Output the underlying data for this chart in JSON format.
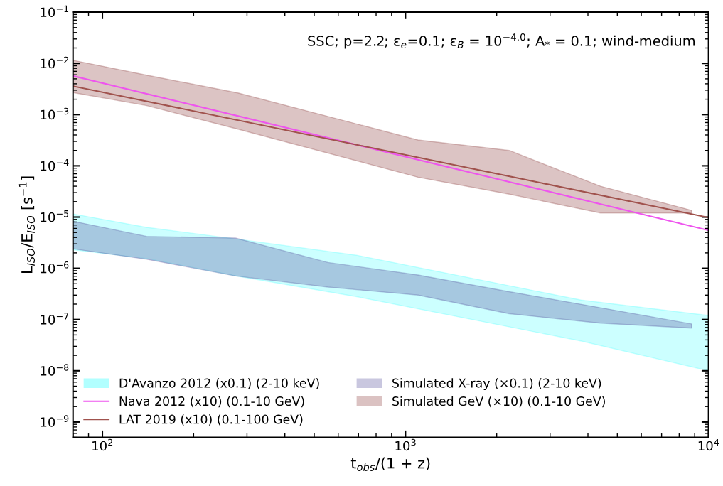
{
  "chart_data": {
    "type": "area",
    "xlabel": "t$_{obs}$/(1 + z)",
    "ylabel": "L$_{ISO}$/E$_{ISO}$ [s$^{−1}$]",
    "annotations": [
      "SSC; p=2.2; ε$_{e}$=0.1; ε$_{B}$ = 10$^{−4.0}$; A$_{*}$ = 0.1; wind-medium"
    ],
    "log": "xy",
    "grid": false,
    "legend": "bottom left",
    "xlim": [
      80,
      10000
    ],
    "ylim": [
      5e-10,
      0.1
    ],
    "xticks": [
      {
        "value": 100,
        "label": "10$^{2}$"
      },
      {
        "value": 1000,
        "label": "10$^{3}$"
      },
      {
        "value": 10000,
        "label": "10$^{4}$"
      }
    ],
    "yticks": [
      {
        "value": 1e-09,
        "label": "10$^{−9}$"
      },
      {
        "value": 1e-08,
        "label": "10$^{−8}$"
      },
      {
        "value": 1e-07,
        "label": "10$^{−7}$"
      },
      {
        "value": 1e-06,
        "label": "10$^{−6}$"
      },
      {
        "value": 1e-05,
        "label": "10$^{−5}$"
      },
      {
        "value": 0.0001,
        "label": "10$^{−4}$"
      },
      {
        "value": 0.001,
        "label": "10$^{−3}$"
      },
      {
        "value": 0.01,
        "label": "10$^{−2}$"
      },
      {
        "value": 0.1,
        "label": "10$^{−1}$"
      }
    ],
    "series": [
      {
        "name": "D'Avanzo 2012 (x0.1) (2-10 keV)",
        "color": "#00ffff",
        "x": [
          80,
          140,
          280,
          690,
          3800,
          10000
        ],
        "values": [
          null,
          null,
          null,
          null,
          null,
          null
        ],
        "lower": [
          2.3e-06,
          1.55e-06,
          7e-07,
          2.8e-07,
          3.8e-08,
          1e-08
        ],
        "upper": [
          1.15e-05,
          6.3e-06,
          3.7e-06,
          1.8e-06,
          2.4e-07,
          1.2e-07
        ]
      },
      {
        "name": "Nava 2012 (x10) (0.1-10 GeV)",
        "type": "line",
        "color": "#ee55ee",
        "x": [
          80,
          10000
        ],
        "values": [
          0.0057,
          5.5e-06
        ]
      },
      {
        "name": "LAT 2019 (x10) (0.1-100 GeV)",
        "type": "line",
        "color": "#a0524d",
        "x": [
          80,
          10000
        ],
        "values": [
          0.0036,
          9.8e-06
        ]
      },
      {
        "name": "Simulated X-ray (×0.1) (2-10 keV)",
        "color": "#4e4898",
        "x": [
          80,
          140,
          275,
          555,
          1100,
          2200,
          4400,
          8800
        ],
        "values": [
          null,
          null,
          null,
          null,
          null,
          null,
          null,
          null
        ],
        "lower": [
          2.4e-06,
          1.5e-06,
          7.1e-07,
          4.3e-07,
          3e-07,
          1.3e-07,
          8.5e-08,
          6.8e-08
        ],
        "upper": [
          8.3e-06,
          4.2e-06,
          3.9e-06,
          1.3e-06,
          7.4e-07,
          3.5e-07,
          1.7e-07,
          8.2e-08
        ]
      },
      {
        "name": "Simulated GeV (×10) (0.1-10 GeV)",
        "color": "#8b3a3a",
        "x": [
          80,
          140,
          280,
          1100,
          2200,
          4400,
          8800
        ],
        "values": [
          null,
          null,
          null,
          null,
          null,
          null,
          null
        ],
        "lower": [
          0.0027,
          0.0015,
          0.00052,
          6e-05,
          2.8e-05,
          1.2e-05,
          1.2e-05
        ],
        "upper": [
          0.0115,
          0.0059,
          0.00265,
          0.00032,
          0.0002,
          4e-05,
          1.35e-05
        ]
      }
    ]
  }
}
